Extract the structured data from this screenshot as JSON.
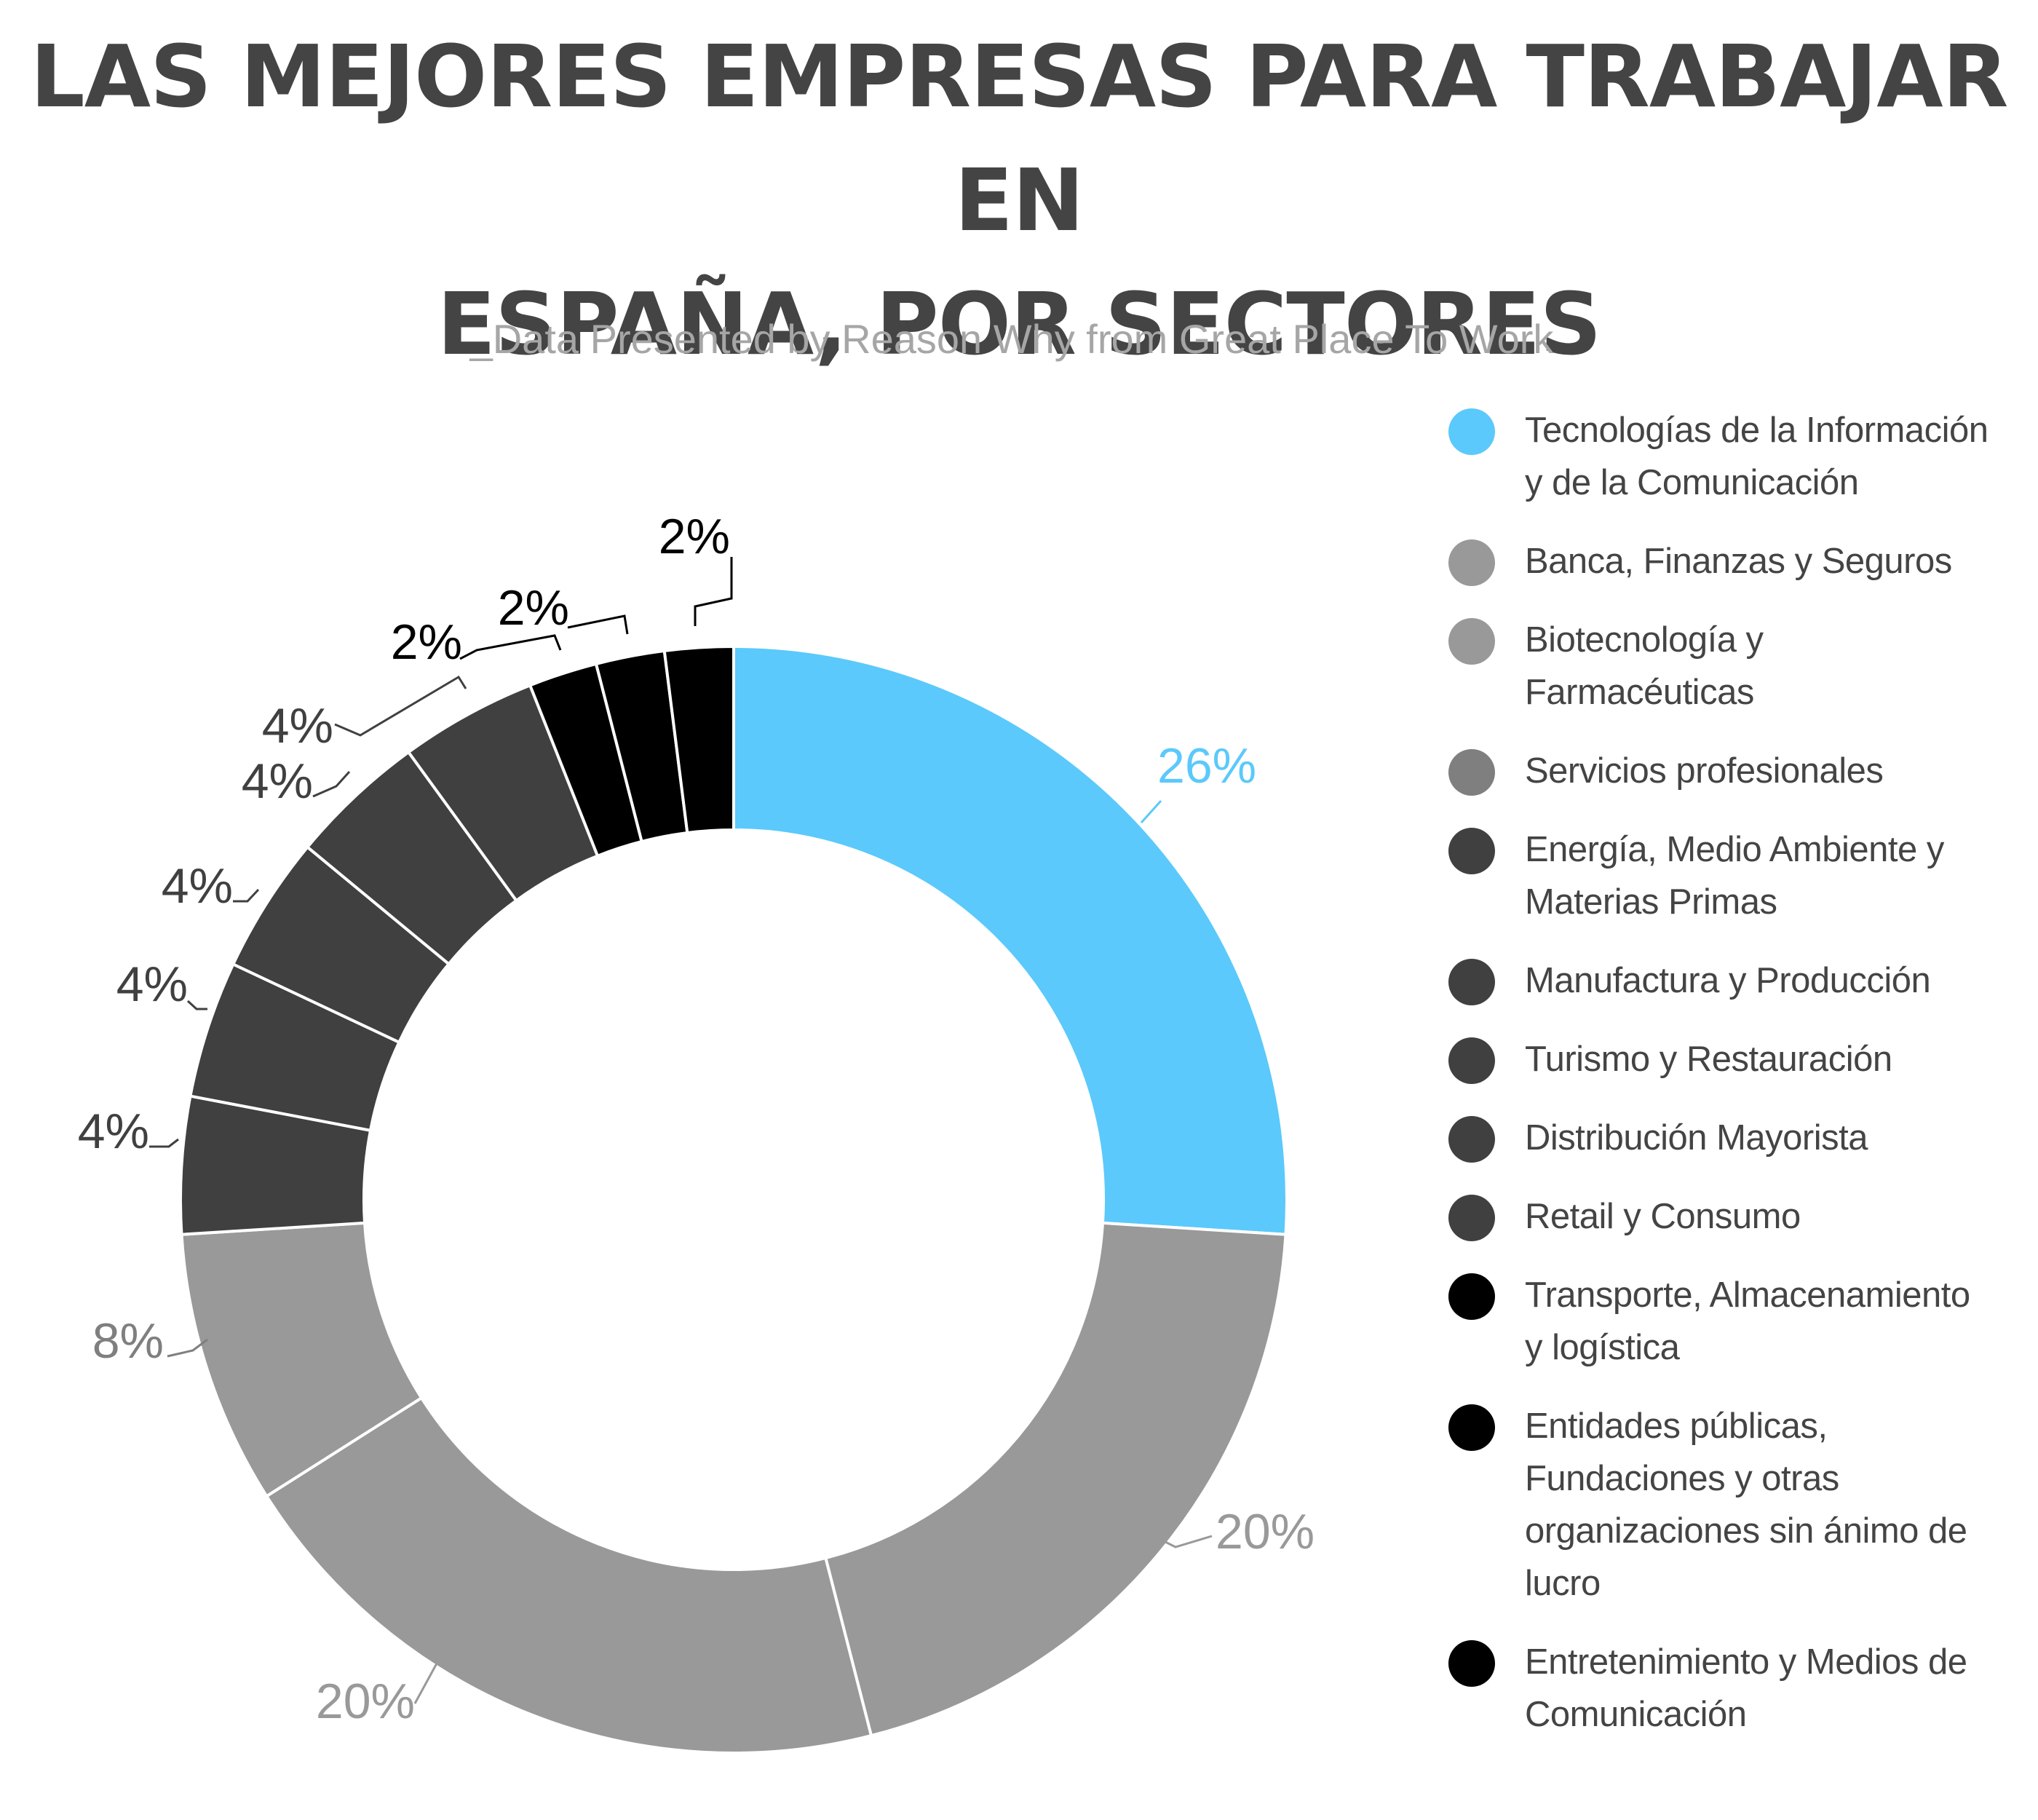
{
  "title": "LAS MEJORES EMPRESAS PARA TRABAJAR EN\nESPAÑA, POR SECTORES",
  "subtitle": "_Data Presented by Reason Why from Great Place To Work",
  "colors": {
    "blue": "#5bc9fb",
    "gray": "#999999",
    "midgray": "#7f7f7f",
    "dark": "#404040",
    "black": "#000000",
    "title": "#444444"
  },
  "chart_data": {
    "type": "pie",
    "variant": "donut",
    "unit": "%",
    "legend_position": "right",
    "slices": [
      {
        "name": "Tecnologías de la Información y de la Comunicación",
        "value": 26,
        "label": "26%",
        "color": "#5bc9fb",
        "label_color": "#5bc9fb"
      },
      {
        "name": "Banca, Finanzas y Seguros",
        "value": 20,
        "label": "20%",
        "color": "#999999",
        "label_color": "#999999"
      },
      {
        "name": "Biotecnología y Farmacéuticas",
        "value": 20,
        "label": "20%",
        "color": "#999999",
        "label_color": "#999999"
      },
      {
        "name": "Servicios profesionales",
        "value": 8,
        "label": "8%",
        "color": "#999999",
        "label_color": "#7f7f7f"
      },
      {
        "name": "Energía, Medio Ambiente y Materias Primas",
        "value": 4,
        "label": "4%",
        "color": "#404040",
        "label_color": "#404040"
      },
      {
        "name": "Manufactura y Producción",
        "value": 4,
        "label": "4%",
        "color": "#404040",
        "label_color": "#404040"
      },
      {
        "name": "Turismo y Restauración",
        "value": 4,
        "label": "4%",
        "color": "#404040",
        "label_color": "#404040"
      },
      {
        "name": "Distribución Mayorista",
        "value": 4,
        "label": "4%",
        "color": "#404040",
        "label_color": "#404040"
      },
      {
        "name": "Retail y Consumo",
        "value": 4,
        "label": "4%",
        "color": "#404040",
        "label_color": "#404040"
      },
      {
        "name": "Transporte, Almacenamiento y logística",
        "value": 2,
        "label": "2%",
        "color": "#000000",
        "label_color": "#000000"
      },
      {
        "name": "Entidades públicas, Fundaciones y otras organizaciones sin ánimo de lucro",
        "value": 2,
        "label": "2%",
        "color": "#000000",
        "label_color": "#000000"
      },
      {
        "name": "Entretenimiento y Medios de Comunicación",
        "value": 2,
        "label": "2%",
        "color": "#000000",
        "label_color": "#000000"
      }
    ]
  },
  "legend": [
    {
      "lines": [
        "Tecnologías de la Información",
        "y de la Comunicación"
      ],
      "color": "#5bc9fb"
    },
    {
      "lines": [
        "Banca, Finanzas y Seguros"
      ],
      "color": "#999999"
    },
    {
      "lines": [
        "Biotecnología y",
        "Farmacéuticas"
      ],
      "color": "#999999"
    },
    {
      "lines": [
        "Servicios profesionales"
      ],
      "color": "#7f7f7f"
    },
    {
      "lines": [
        "Energía, Medio Ambiente y",
        "Materias Primas"
      ],
      "color": "#404040"
    },
    {
      "lines": [
        "Manufactura y Producción"
      ],
      "color": "#404040"
    },
    {
      "lines": [
        "Turismo y Restauración"
      ],
      "color": "#404040"
    },
    {
      "lines": [
        "Distribución Mayorista"
      ],
      "color": "#404040"
    },
    {
      "lines": [
        "Retail y Consumo"
      ],
      "color": "#404040"
    },
    {
      "lines": [
        "Transporte, Almacenamiento",
        "y logística"
      ],
      "color": "#000000"
    },
    {
      "lines": [
        "Entidades públicas,",
        "Fundaciones y otras",
        "organizaciones sin ánimo de",
        "lucro"
      ],
      "color": "#000000"
    },
    {
      "lines": [
        "Entretenimiento y Medios de",
        "Comunicación"
      ],
      "color": "#000000"
    }
  ]
}
